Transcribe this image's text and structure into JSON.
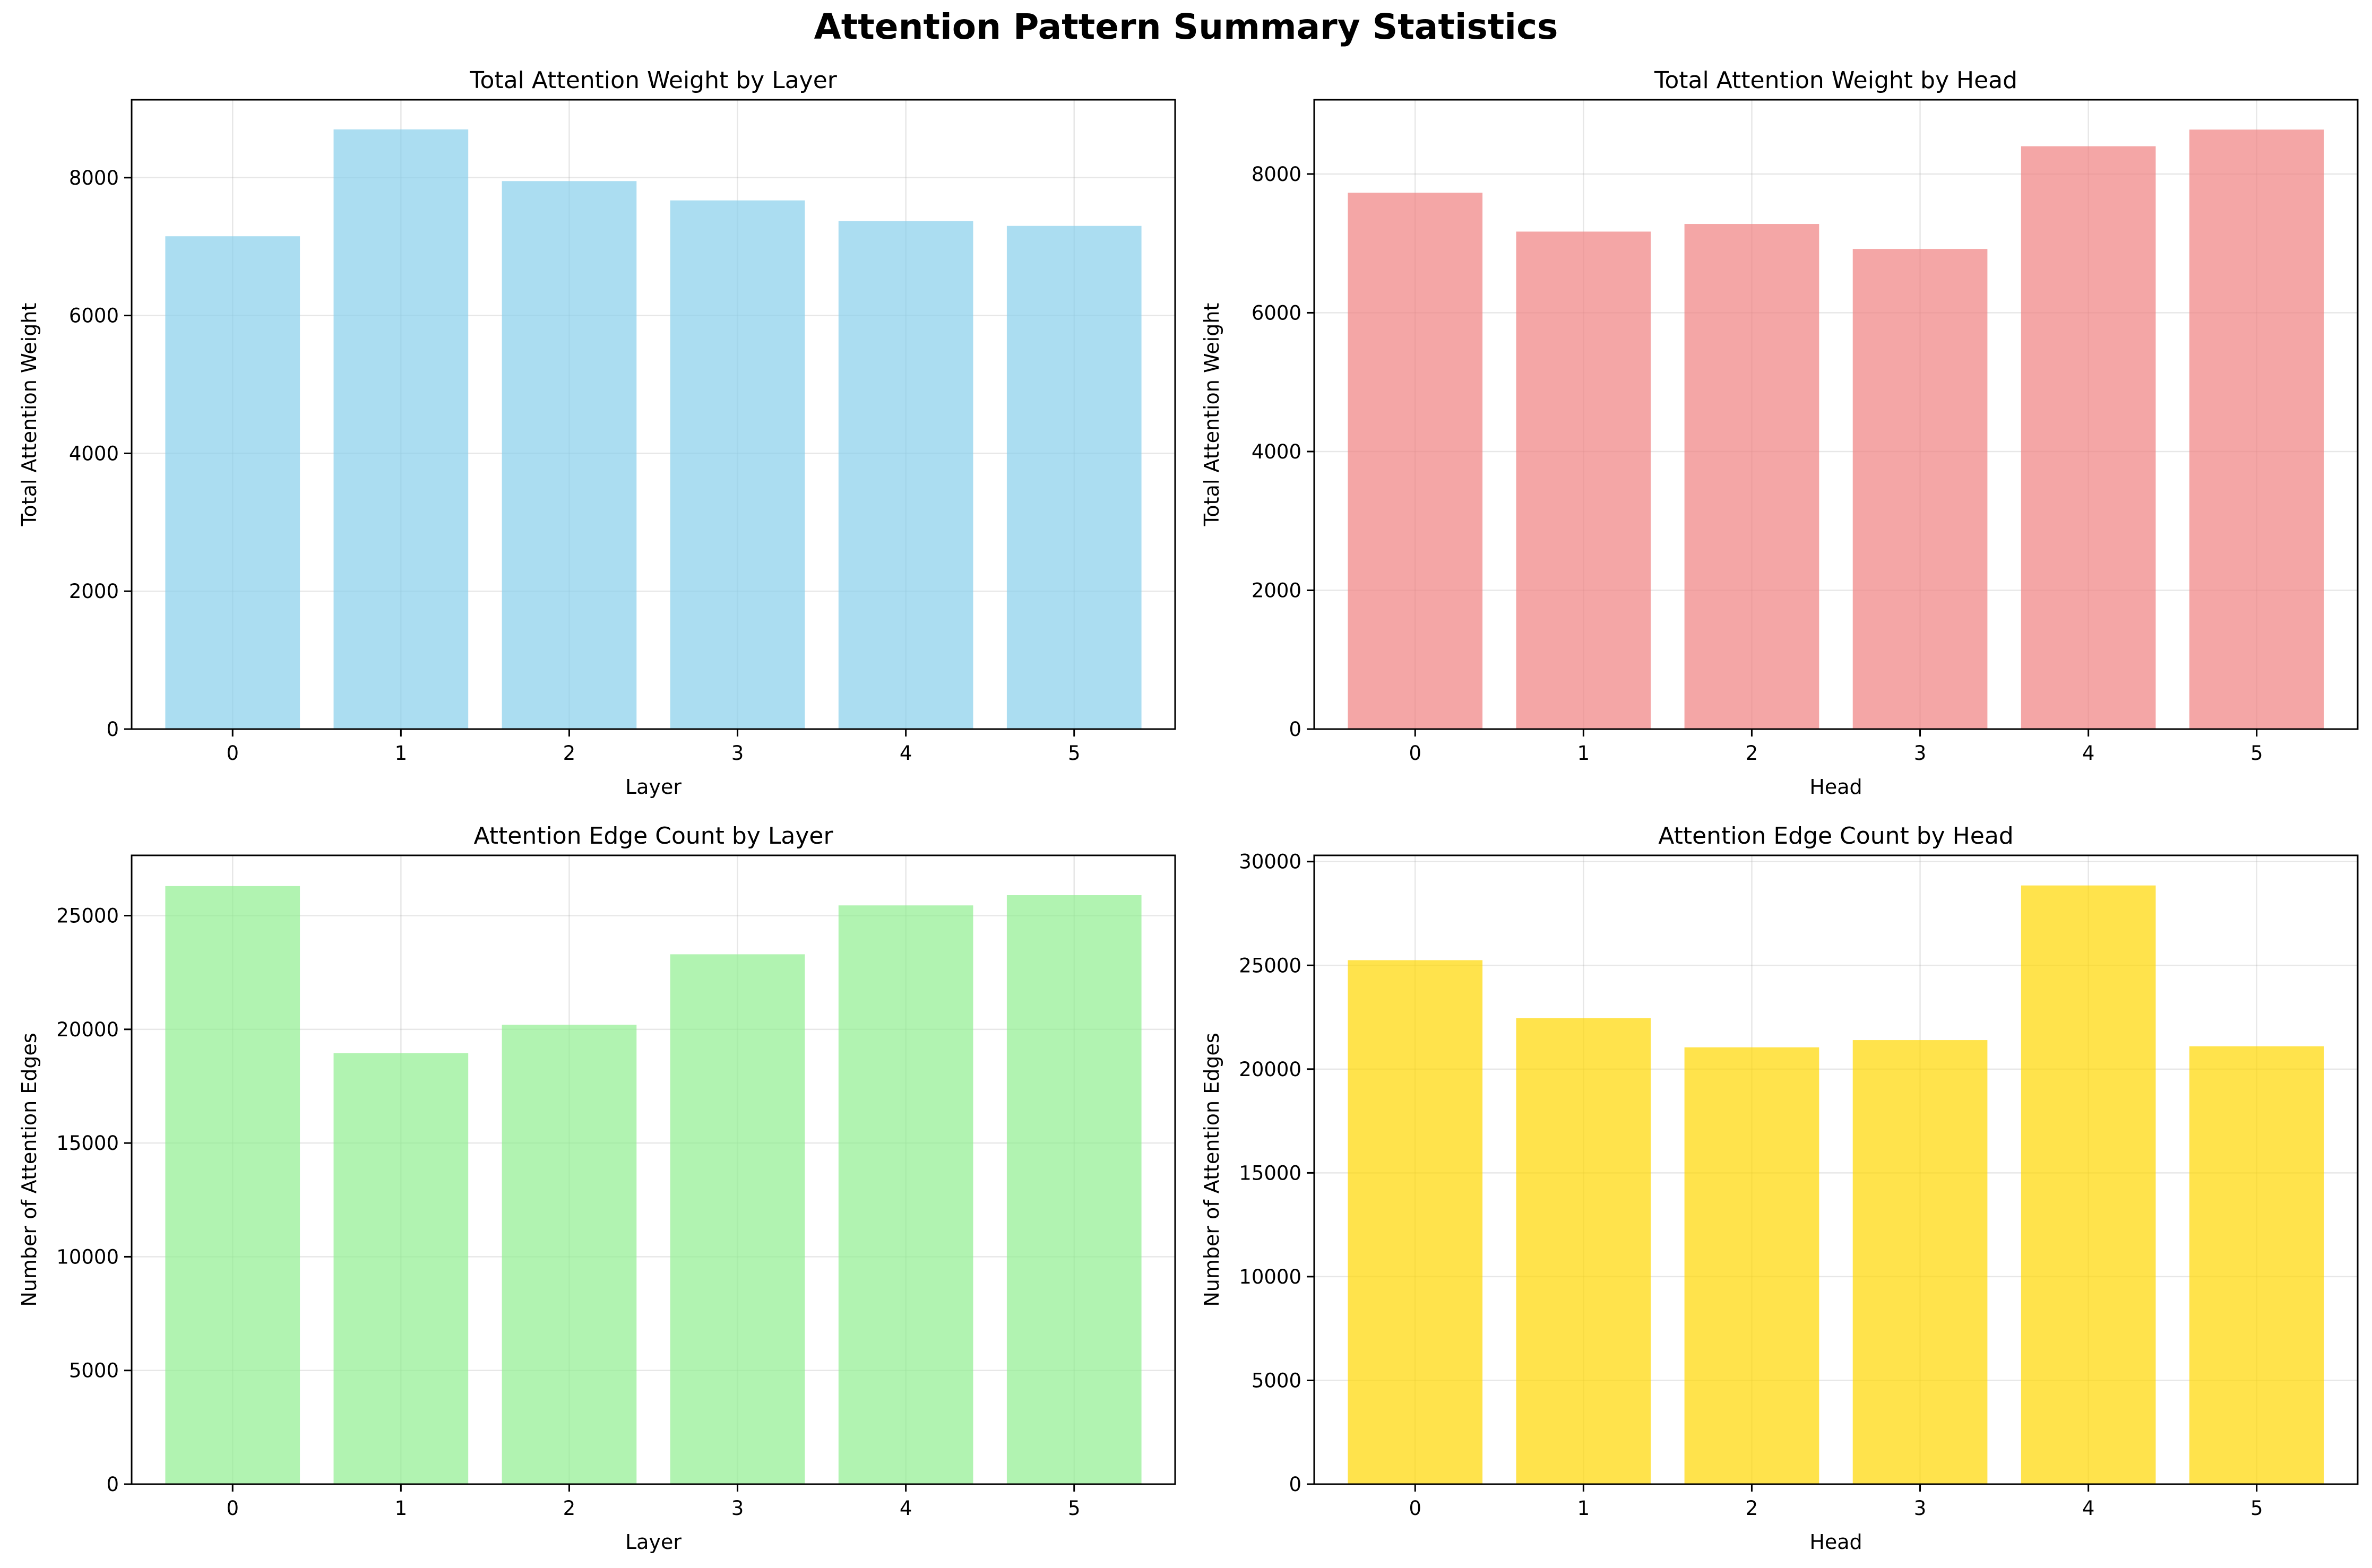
{
  "figure": {
    "title": "Attention Pattern Summary Statistics"
  },
  "chart_data": [
    {
      "type": "bar",
      "title": "Total Attention Weight by Layer",
      "xlabel": "Layer",
      "ylabel": "Total Attention Weight",
      "categories": [
        "0",
        "1",
        "2",
        "3",
        "4",
        "5"
      ],
      "values": [
        7150,
        8700,
        7950,
        7670,
        7370,
        7300
      ],
      "ylim": [
        0,
        9130
      ],
      "yticks": [
        0,
        2000,
        4000,
        6000,
        8000
      ],
      "grid": true,
      "color": "#87CEEB"
    },
    {
      "type": "bar",
      "title": "Total Attention Weight by Head",
      "xlabel": "Head",
      "ylabel": "Total Attention Weight",
      "categories": [
        "0",
        "1",
        "2",
        "3",
        "4",
        "5"
      ],
      "values": [
        7730,
        7170,
        7280,
        6920,
        8400,
        8640
      ],
      "ylim": [
        0,
        9070
      ],
      "yticks": [
        0,
        2000,
        4000,
        6000,
        8000
      ],
      "grid": true,
      "color": "#F08080"
    },
    {
      "type": "bar",
      "title": "Attention Edge Count by Layer",
      "xlabel": "Layer",
      "ylabel": "Number of Attention Edges",
      "categories": [
        "0",
        "1",
        "2",
        "3",
        "4",
        "5"
      ],
      "values": [
        26300,
        18950,
        20200,
        23300,
        25450,
        25900
      ],
      "ylim": [
        0,
        27650
      ],
      "yticks": [
        0,
        5000,
        10000,
        15000,
        20000,
        25000
      ],
      "grid": true,
      "color": "#90EE90"
    },
    {
      "type": "bar",
      "title": "Attention Edge Count by Head",
      "xlabel": "Head",
      "ylabel": "Number of Attention Edges",
      "categories": [
        "0",
        "1",
        "2",
        "3",
        "4",
        "5"
      ],
      "values": [
        25250,
        22450,
        21050,
        21400,
        28850,
        21100
      ],
      "ylim": [
        0,
        30300
      ],
      "yticks": [
        0,
        5000,
        10000,
        15000,
        20000,
        25000,
        30000
      ],
      "grid": true,
      "color": "#FFD700"
    }
  ]
}
